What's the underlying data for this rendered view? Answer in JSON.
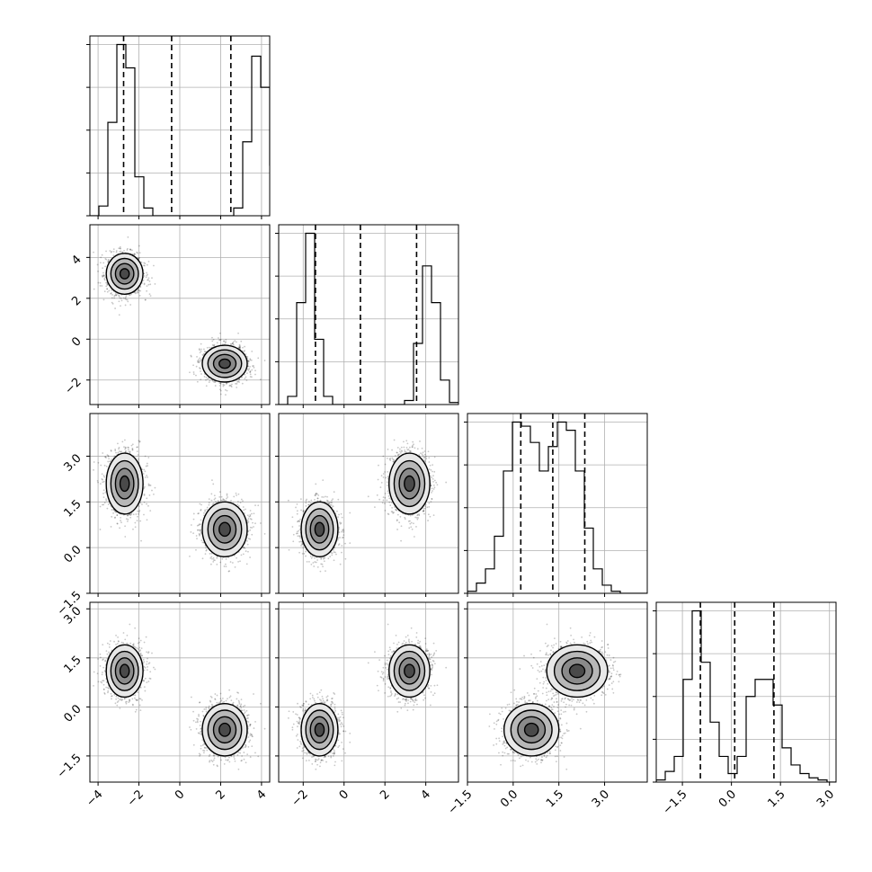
{
  "chart_data": {
    "type": "corner",
    "dims": [
      {
        "range": [
          -4.4,
          4.4
        ],
        "ticks": [
          -4,
          -2,
          0,
          2,
          4
        ],
        "tick_labels": [
          "−4",
          "−2",
          "0",
          "2",
          "4"
        ]
      },
      {
        "range": [
          -3.2,
          5.6
        ],
        "ticks": [
          -2,
          0,
          2,
          4
        ],
        "tick_labels": [
          "−2",
          "0",
          "2",
          "4"
        ]
      },
      {
        "range": [
          -1.5,
          4.4
        ],
        "ticks": [
          -1.5,
          0.0,
          1.5,
          3.0
        ],
        "tick_labels": [
          "−1.5",
          "0.0",
          "1.5",
          "3.0"
        ]
      },
      {
        "range": [
          -2.3,
          3.2
        ],
        "ticks": [
          -1.5,
          0.0,
          1.5,
          3.0
        ],
        "tick_labels": [
          "−1.5",
          "0.0",
          "1.5",
          "3.0"
        ]
      }
    ],
    "histograms": [
      {
        "bins_start": -4.4,
        "bin_width": 0.44,
        "counts": [
          0,
          25,
          240,
          440,
          380,
          100,
          20,
          0,
          0,
          0,
          0,
          0,
          0,
          0,
          0,
          0,
          20,
          190,
          410,
          330,
          130,
          20,
          5
        ],
        "quantiles": [
          -2.75,
          -0.4,
          2.5
        ]
      },
      {
        "bins_start": -3.2,
        "bin_width": 0.44,
        "counts": [
          0,
          20,
          250,
          420,
          160,
          20,
          0,
          0,
          0,
          0,
          0,
          0,
          0,
          0,
          10,
          150,
          340,
          250,
          60,
          5
        ],
        "quantiles": [
          -1.4,
          0.8,
          3.55
        ]
      },
      {
        "bins_start": -1.5,
        "bin_width": 0.295,
        "counts": [
          5,
          25,
          60,
          140,
          300,
          420,
          410,
          370,
          300,
          360,
          420,
          400,
          300,
          160,
          60,
          20,
          5,
          0,
          0,
          0
        ],
        "quantiles": [
          0.25,
          1.3,
          2.35
        ]
      },
      {
        "bins_start": -2.3,
        "bin_width": 0.275,
        "counts": [
          5,
          25,
          60,
          240,
          400,
          280,
          140,
          60,
          20,
          60,
          200,
          240,
          240,
          180,
          80,
          40,
          20,
          10,
          5,
          0
        ],
        "quantiles": [
          -0.95,
          0.1,
          1.3
        ]
      }
    ],
    "clusters": [
      {
        "mean": [
          -2.7,
          3.2,
          2.1,
          1.1
        ],
        "sd": [
          0.45,
          0.5,
          0.5,
          0.4
        ]
      },
      {
        "mean": [
          2.2,
          -1.2,
          0.6,
          -0.7
        ],
        "sd": [
          0.55,
          0.45,
          0.45,
          0.4
        ]
      }
    ]
  }
}
